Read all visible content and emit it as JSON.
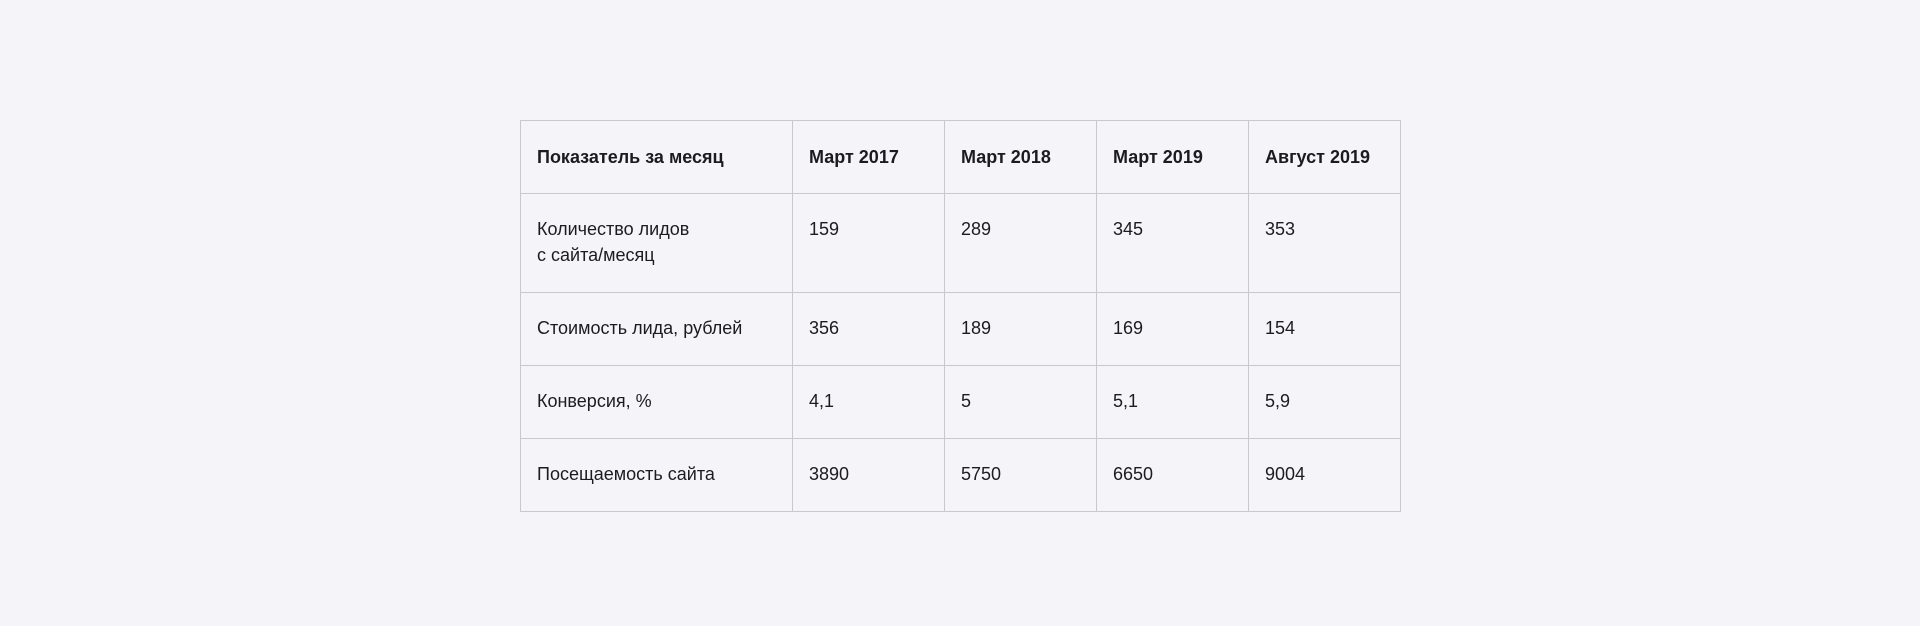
{
  "table": {
    "header": [
      "Показатель за месяц",
      "Март 2017",
      "Март 2018",
      "Март 2019",
      "Август 2019"
    ],
    "rows": [
      [
        "Количество лидов\nс сайта/месяц",
        "159",
        "289",
        "345",
        "353"
      ],
      [
        "Стоимость лида, рублей",
        "356",
        "189",
        "169",
        "154"
      ],
      [
        "Конверсия, %",
        "4,1",
        "5",
        "5,1",
        "5,9"
      ],
      [
        "Посещаемость сайта",
        "3890",
        "5750",
        "6650",
        "9004"
      ]
    ]
  }
}
